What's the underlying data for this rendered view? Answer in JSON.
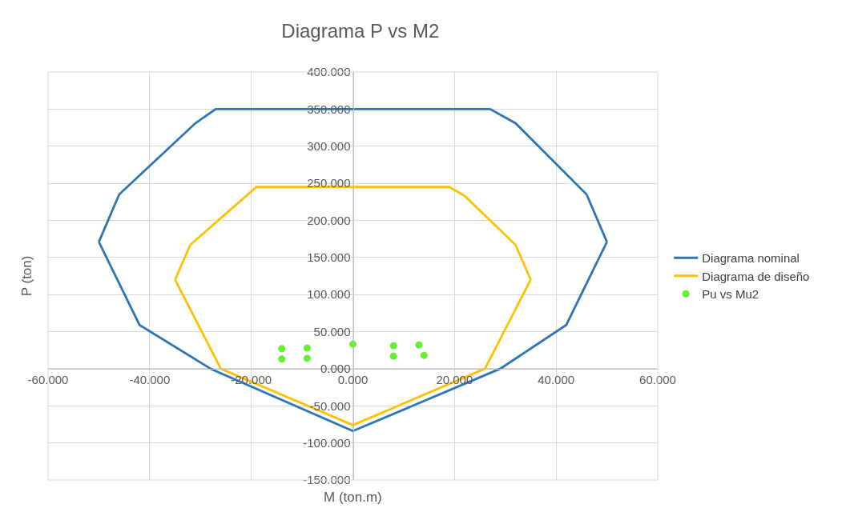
{
  "chart_data": {
    "type": "line",
    "title": "Diagrama P vs M2",
    "xlabel": "M (ton.m)",
    "ylabel": "P (ton)",
    "xlim": [
      -60,
      60
    ],
    "ylim": [
      -150,
      400
    ],
    "xticks": [
      {
        "value": -60,
        "label": "-60.000"
      },
      {
        "value": -40,
        "label": "-40.000"
      },
      {
        "value": -20,
        "label": "-20.000"
      },
      {
        "value": 0,
        "label": "0.000"
      },
      {
        "value": 20,
        "label": "20.000"
      },
      {
        "value": 40,
        "label": "40.000"
      },
      {
        "value": 60,
        "label": "60.000"
      }
    ],
    "yticks": [
      {
        "value": -150,
        "label": "-150.000"
      },
      {
        "value": -100,
        "label": "-100.000"
      },
      {
        "value": -50,
        "label": "-50.000"
      },
      {
        "value": 0,
        "label": "0.000"
      },
      {
        "value": 50,
        "label": "50.000"
      },
      {
        "value": 100,
        "label": "100.000"
      },
      {
        "value": 150,
        "label": "150.000"
      },
      {
        "value": 200,
        "label": "200.000"
      },
      {
        "value": 250,
        "label": "250.000"
      },
      {
        "value": 300,
        "label": "300.000"
      },
      {
        "value": 350,
        "label": "350.000"
      },
      {
        "value": 400,
        "label": "400.000"
      }
    ],
    "grid": true,
    "legend": "right",
    "marker": "none",
    "line_style": "solid",
    "series": [
      {
        "name": "Diagrama nominal",
        "color": "#2e75b6",
        "x": [
          -50,
          -46,
          -31,
          -27,
          27,
          32,
          46,
          50
        ],
        "values": [
          171,
          235,
          331,
          350,
          350,
          331,
          235,
          171
        ]
      },
      {
        "color": "#2e75b6",
        "x": [
          -50,
          -42,
          -28,
          0,
          29,
          42,
          50
        ],
        "values": [
          171,
          59,
          0,
          -84,
          0,
          59,
          171
        ]
      },
      {
        "name": "Diagrama de diseño",
        "color": "#ffc000",
        "x": [
          -35,
          -32,
          -21,
          -19,
          19,
          22,
          32,
          35
        ],
        "values": [
          120,
          167,
          233,
          245,
          245,
          233,
          167,
          120
        ]
      },
      {
        "color": "#ffc000",
        "x": [
          -35,
          -26,
          0,
          26,
          35
        ],
        "values": [
          120,
          0,
          -76,
          0,
          120
        ]
      },
      {
        "name": "Pu vs Mu2",
        "type": "scatter",
        "marker": "circle",
        "color": "#66ee33",
        "x": [
          -14,
          -14,
          -9,
          -9,
          0,
          8,
          8,
          13,
          14
        ],
        "values": [
          27,
          13,
          28,
          14,
          33,
          31,
          17,
          32,
          18
        ]
      }
    ]
  }
}
